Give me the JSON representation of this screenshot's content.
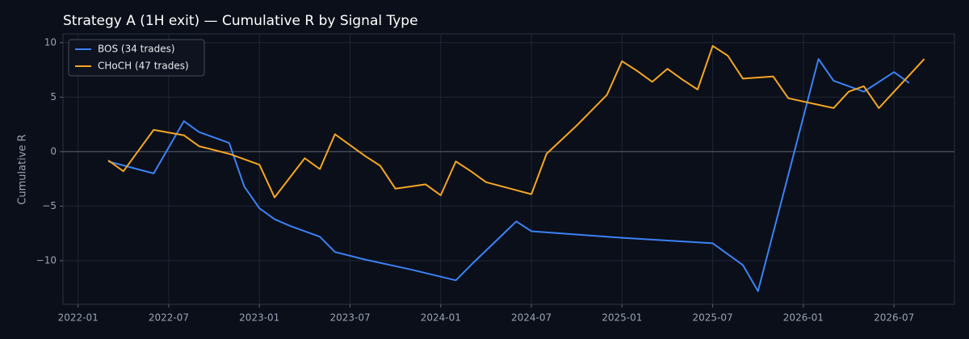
{
  "chart_data": {
    "type": "line",
    "title": "Strategy A (1H exit) — Cumulative R by Signal Type",
    "ylabel": "Cumulative R",
    "xlim": [
      "2021-12",
      "2026-11"
    ],
    "xticks": [
      "2022-01",
      "2022-07",
      "2023-01",
      "2023-07",
      "2024-01",
      "2024-07",
      "2025-01",
      "2025-07",
      "2026-01",
      "2026-07"
    ],
    "ylim": [
      -14,
      10.8
    ],
    "yticks": [
      {
        "value": -10,
        "label": "−10"
      },
      {
        "value": -5,
        "label": "−5"
      },
      0,
      5,
      10
    ],
    "grid": true,
    "zero_line": true,
    "legend": "upper left",
    "series": [
      {
        "name": "BOS (34 trades)",
        "color": "#3b82f6",
        "x": [
          "2022-03",
          "2022-06",
          "2022-08",
          "2022-09",
          "2022-11",
          "2022-12",
          "2023-01",
          "2023-02",
          "2023-03",
          "2023-05",
          "2023-06",
          "2023-08",
          "2023-11",
          "2024-02",
          "2024-03",
          "2024-06",
          "2024-07",
          "2025-01",
          "2025-07",
          "2025-08",
          "2025-09",
          "2025-10",
          "2026-02",
          "2026-03",
          "2026-05",
          "2026-07",
          "2026-08"
        ],
        "values": [
          -0.9,
          -2.0,
          2.8,
          1.8,
          0.8,
          -3.2,
          -5.2,
          -6.2,
          -6.8,
          -7.8,
          -9.2,
          -9.9,
          -10.8,
          -11.8,
          -10.4,
          -6.4,
          -7.3,
          -7.9,
          -8.4,
          -9.4,
          -10.4,
          -12.8,
          8.5,
          6.5,
          5.5,
          7.3,
          6.3
        ]
      },
      {
        "name": "CHoCH (47 trades)",
        "color": "#f5a623",
        "x": [
          "2022-03",
          "2022-04",
          "2022-06",
          "2022-08",
          "2022-09",
          "2022-11",
          "2023-01",
          "2023-02",
          "2023-04",
          "2023-05",
          "2023-06",
          "2023-07",
          "2023-08",
          "2023-09",
          "2023-10",
          "2023-12",
          "2024-01",
          "2024-02",
          "2024-03",
          "2024-04",
          "2024-07",
          "2024-08",
          "2024-10",
          "2024-12",
          "2025-01",
          "2025-02",
          "2025-03",
          "2025-04",
          "2025-05",
          "2025-06",
          "2025-07",
          "2025-08",
          "2025-09",
          "2025-11",
          "2025-12",
          "2026-03",
          "2026-04",
          "2026-05",
          "2026-06",
          "2026-09"
        ],
        "values": [
          -0.8,
          -1.8,
          2.0,
          1.5,
          0.5,
          -0.2,
          -1.2,
          -4.2,
          -0.6,
          -1.6,
          1.6,
          0.6,
          -0.4,
          -1.3,
          -3.4,
          -3.0,
          -4.0,
          -0.9,
          -1.8,
          -2.8,
          -3.9,
          -0.2,
          2.4,
          5.2,
          8.3,
          7.4,
          6.4,
          7.6,
          6.6,
          5.7,
          9.7,
          8.8,
          6.7,
          6.9,
          4.9,
          4.0,
          5.5,
          6.0,
          4.0,
          8.5
        ]
      }
    ]
  }
}
